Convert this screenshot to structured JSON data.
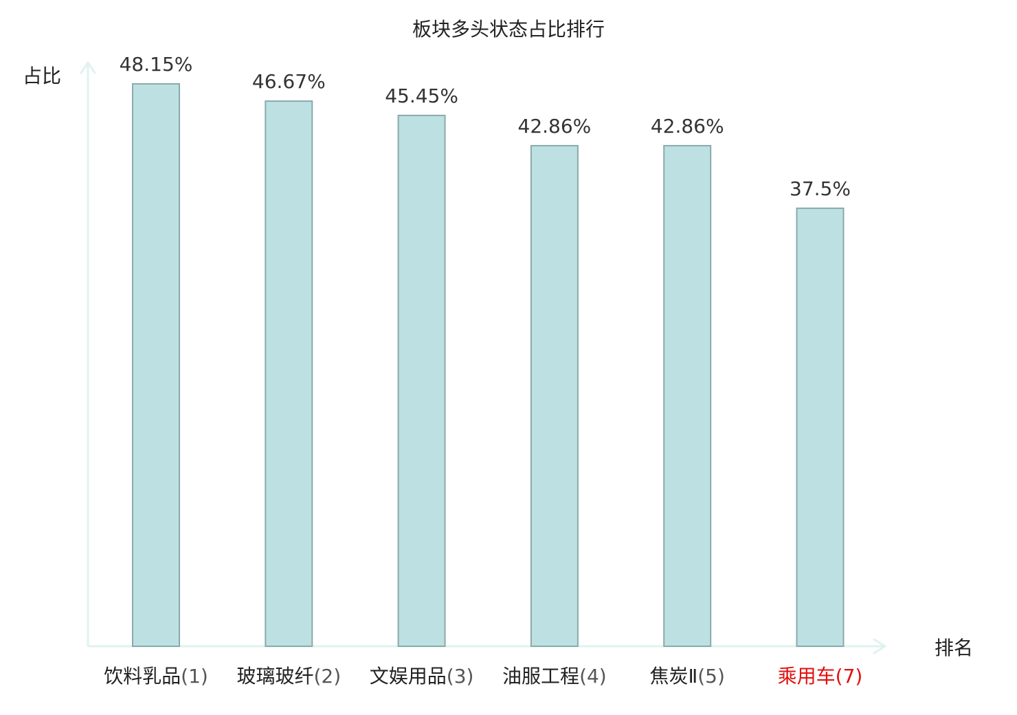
{
  "chart_data": {
    "type": "bar",
    "title": "板块多头状态占比排行",
    "xlabel": "排名",
    "ylabel": "占比",
    "ylim": [
      0,
      48.15
    ],
    "grid": false,
    "categories": [
      {
        "name": "饮料乳品",
        "rank": "(1)"
      },
      {
        "name": "玻璃玻纤",
        "rank": "(2)"
      },
      {
        "name": "文娱用品",
        "rank": "(3)"
      },
      {
        "name": "油服工程",
        "rank": "(4)"
      },
      {
        "name": "焦炭Ⅱ",
        "rank": "(5)"
      },
      {
        "name": "乘用车",
        "rank": "(7)",
        "highlight": true
      }
    ],
    "values": [
      48.15,
      46.67,
      45.45,
      42.86,
      42.86,
      37.5
    ],
    "value_labels": [
      "48.15%",
      "46.67%",
      "45.45%",
      "42.86%",
      "42.86%",
      "37.5%"
    ]
  },
  "colors": {
    "bar_fill": "#bde1e3",
    "bar_stroke": "#8aa9aa",
    "axis": "#e0f2ef",
    "text": "#222222",
    "rank_text": "#555555",
    "highlight": "#e01010"
  }
}
